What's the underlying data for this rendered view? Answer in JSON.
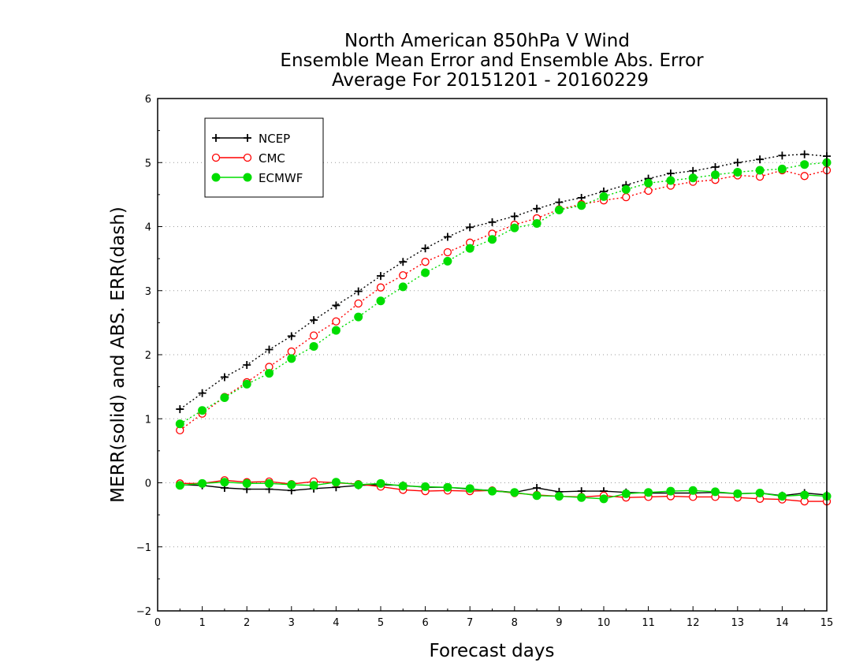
{
  "chart_data": {
    "type": "line",
    "title_lines": [
      "North American 850hPa V Wind",
      "Ensemble Mean Error and Ensemble Abs. Error",
      "Average For 20151201 - 20160229"
    ],
    "xlabel": "Forecast days",
    "ylabel": "MERR(solid) and ABS. ERR(dash)",
    "xlim": [
      0,
      15
    ],
    "ylim": [
      -2,
      6
    ],
    "xticks": [
      0,
      1,
      2,
      3,
      4,
      5,
      6,
      7,
      8,
      9,
      10,
      11,
      12,
      13,
      14,
      15
    ],
    "yticks": [
      -2,
      -1,
      0,
      1,
      2,
      3,
      4,
      5,
      6
    ],
    "grid": "horizontal dotted",
    "legend_position": "top-left",
    "x": [
      0.5,
      1,
      1.5,
      2,
      2.5,
      3,
      3.5,
      4,
      4.5,
      5,
      5.5,
      6,
      6.5,
      7,
      7.5,
      8,
      8.5,
      9,
      9.5,
      10,
      10.5,
      11,
      11.5,
      12,
      12.5,
      13,
      13.5,
      14,
      14.5,
      15
    ],
    "series": [
      {
        "name": "NCEP",
        "color": "#000000",
        "marker": "plus",
        "abs_err": [
          1.15,
          1.4,
          1.65,
          1.84,
          2.08,
          2.29,
          2.54,
          2.77,
          2.99,
          3.23,
          3.45,
          3.66,
          3.84,
          3.99,
          4.07,
          4.16,
          4.28,
          4.38,
          4.45,
          4.55,
          4.65,
          4.75,
          4.83,
          4.87,
          4.93,
          5.0,
          5.05,
          5.11,
          5.13,
          5.1
        ],
        "mean_err": [
          -0.03,
          -0.04,
          -0.08,
          -0.1,
          -0.1,
          -0.12,
          -0.09,
          -0.07,
          -0.04,
          -0.03,
          -0.04,
          -0.07,
          -0.07,
          -0.1,
          -0.12,
          -0.15,
          -0.08,
          -0.14,
          -0.13,
          -0.13,
          -0.15,
          -0.16,
          -0.16,
          -0.16,
          -0.15,
          -0.17,
          -0.16,
          -0.2,
          -0.16,
          -0.19
        ]
      },
      {
        "name": "CMC",
        "color": "#ff0000",
        "marker": "open-circle",
        "abs_err": [
          0.82,
          1.08,
          1.34,
          1.57,
          1.81,
          2.05,
          2.3,
          2.52,
          2.8,
          3.05,
          3.24,
          3.45,
          3.6,
          3.75,
          3.89,
          4.03,
          4.13,
          4.27,
          4.35,
          4.41,
          4.46,
          4.56,
          4.64,
          4.7,
          4.73,
          4.8,
          4.78,
          4.88,
          4.79,
          4.88
        ],
        "mean_err": [
          -0.01,
          -0.01,
          0.04,
          0.01,
          0.02,
          -0.02,
          0.02,
          0.0,
          -0.02,
          -0.06,
          -0.11,
          -0.13,
          -0.12,
          -0.13,
          -0.12,
          -0.16,
          -0.19,
          -0.21,
          -0.22,
          -0.2,
          -0.23,
          -0.22,
          -0.21,
          -0.22,
          -0.22,
          -0.23,
          -0.25,
          -0.26,
          -0.29,
          -0.29
        ]
      },
      {
        "name": "ECMWF",
        "color": "#00dd00",
        "marker": "filled-circle",
        "abs_err": [
          0.92,
          1.13,
          1.33,
          1.54,
          1.71,
          1.94,
          2.13,
          2.38,
          2.59,
          2.84,
          3.06,
          3.28,
          3.46,
          3.66,
          3.8,
          3.98,
          4.05,
          4.26,
          4.33,
          4.47,
          4.58,
          4.68,
          4.72,
          4.76,
          4.81,
          4.85,
          4.88,
          4.9,
          4.97,
          5.0
        ],
        "mean_err": [
          -0.04,
          -0.01,
          0.01,
          -0.01,
          -0.01,
          -0.03,
          -0.04,
          0.01,
          -0.03,
          -0.01,
          -0.05,
          -0.06,
          -0.07,
          -0.09,
          -0.13,
          -0.15,
          -0.2,
          -0.21,
          -0.23,
          -0.25,
          -0.17,
          -0.15,
          -0.13,
          -0.12,
          -0.14,
          -0.17,
          -0.16,
          -0.21,
          -0.19,
          -0.21
        ]
      }
    ]
  }
}
